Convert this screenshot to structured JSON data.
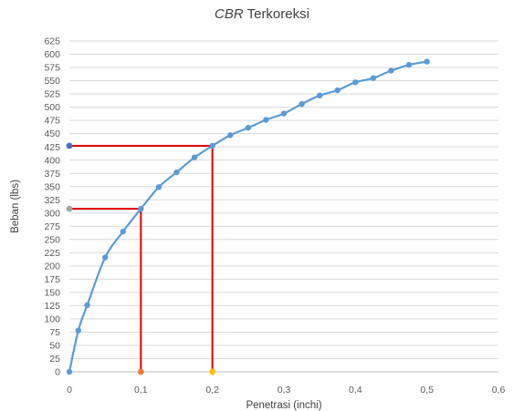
{
  "chart_data": {
    "type": "scatter",
    "title_italic": "CBR",
    "title_rest": " Terkoreksi",
    "xlabel": "Penetrasi (inchi)",
    "ylabel": "Beban (lbs)",
    "xlim": [
      0,
      0.6
    ],
    "ylim": [
      0,
      625
    ],
    "x_ticks": [
      0,
      0.1,
      0.2,
      0.3,
      0.4,
      0.5,
      0.6
    ],
    "x_tick_labels": [
      "0",
      "0,1",
      "0,2",
      "0,3",
      "0,4",
      "0,5",
      "0,6"
    ],
    "y_ticks": [
      0,
      25,
      50,
      75,
      100,
      125,
      150,
      175,
      200,
      225,
      250,
      275,
      300,
      325,
      350,
      375,
      400,
      425,
      450,
      475,
      500,
      525,
      550,
      575,
      600,
      625
    ],
    "grid": "horizontal",
    "series": [
      {
        "color": "#5b9bd5",
        "x": [
          0,
          0.0125,
          0.025,
          0.05,
          0.075,
          0.1,
          0.125,
          0.15,
          0.175,
          0.2,
          0.225,
          0.25,
          0.275,
          0.3,
          0.325,
          0.35,
          0.375,
          0.4,
          0.425,
          0.45,
          0.475,
          0.5
        ],
        "y": [
          0,
          78,
          126,
          216,
          265,
          308,
          349,
          377,
          405,
          427,
          447,
          461,
          476,
          488,
          506,
          522,
          532,
          547,
          555,
          569,
          580,
          586
        ]
      }
    ],
    "markers": [
      {
        "name": "x-marker-0.1",
        "color": "#ed7d31",
        "x": 0.1,
        "y": 0
      },
      {
        "name": "x-marker-0.2",
        "color": "#ffc000",
        "x": 0.2,
        "y": 0
      },
      {
        "name": "y-marker-308",
        "color": "#a5a5a5",
        "x": 0,
        "y": 308
      },
      {
        "name": "y-marker-427",
        "color": "#4472c4",
        "x": 0,
        "y": 427
      }
    ],
    "reference_lines": {
      "color": "#e00000",
      "points": [
        {
          "x": 0.1,
          "y": 308
        },
        {
          "x": 0.2,
          "y": 427
        }
      ]
    }
  }
}
